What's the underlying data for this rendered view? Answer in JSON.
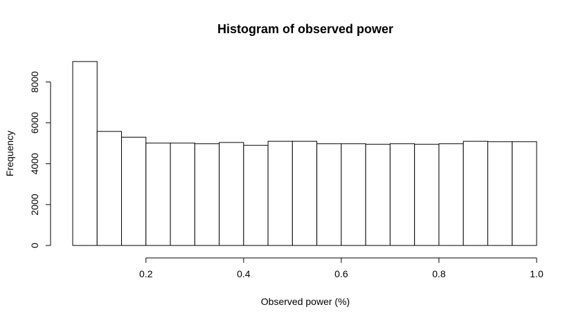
{
  "chart_data": {
    "type": "bar",
    "title": "Histogram of observed power",
    "xlabel": "Observed power (%)",
    "ylabel": "Frequency",
    "bin_edges": [
      0.05,
      0.1,
      0.15,
      0.2,
      0.25,
      0.3,
      0.35,
      0.4,
      0.45,
      0.5,
      0.55,
      0.6,
      0.65,
      0.7,
      0.75,
      0.8,
      0.85,
      0.9,
      0.95,
      1.0
    ],
    "values": [
      9000,
      5580,
      5300,
      5010,
      5010,
      4980,
      5040,
      4900,
      5100,
      5100,
      4980,
      4980,
      4950,
      4980,
      4950,
      4980,
      5100,
      5080,
      5080
    ],
    "xlim": [
      0.05,
      1.0
    ],
    "ylim": [
      0,
      9000
    ],
    "x_ticks": [
      0.2,
      0.4,
      0.6,
      0.8,
      1.0
    ],
    "x_tick_labels": [
      "0.2",
      "0.4",
      "0.6",
      "0.8",
      "1.0"
    ],
    "y_ticks": [
      0,
      2000,
      4000,
      6000,
      8000
    ],
    "y_tick_labels": [
      "0",
      "2000",
      "4000",
      "6000",
      "8000"
    ],
    "grid": false,
    "legend": "none",
    "bar_fill": "#ffffff",
    "bar_stroke": "#000000"
  }
}
